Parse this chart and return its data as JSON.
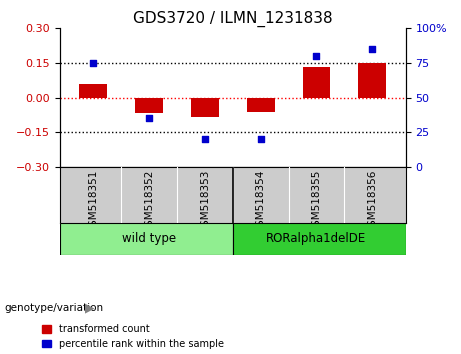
{
  "title": "GDS3720 / ILMN_1231838",
  "samples": [
    "GSM518351",
    "GSM518352",
    "GSM518353",
    "GSM518354",
    "GSM518355",
    "GSM518356"
  ],
  "red_bars": [
    0.06,
    -0.065,
    -0.085,
    -0.062,
    0.132,
    0.148
  ],
  "blue_dots": [
    75,
    35,
    20,
    20,
    80,
    85
  ],
  "ylim_left": [
    -0.3,
    0.3
  ],
  "ylim_right": [
    0,
    100
  ],
  "yticks_left": [
    -0.3,
    -0.15,
    0,
    0.15,
    0.3
  ],
  "yticks_right": [
    0,
    25,
    50,
    75,
    100
  ],
  "bar_color": "#CC0000",
  "dot_color": "#0000CC",
  "bar_width": 0.5,
  "genotype_label": "genotype/variation",
  "legend_items": [
    "transformed count",
    "percentile rank within the sample"
  ],
  "bg_color": "#FFFFFF",
  "tick_label_color_left": "#CC0000",
  "tick_label_color_right": "#0000CC",
  "title_fontsize": 11,
  "tick_fontsize": 8,
  "sample_fontsize": 7.5,
  "group1_label": "wild type",
  "group2_label": "RORalpha1delDE",
  "group1_color": "#90EE90",
  "group2_color": "#32CD32"
}
